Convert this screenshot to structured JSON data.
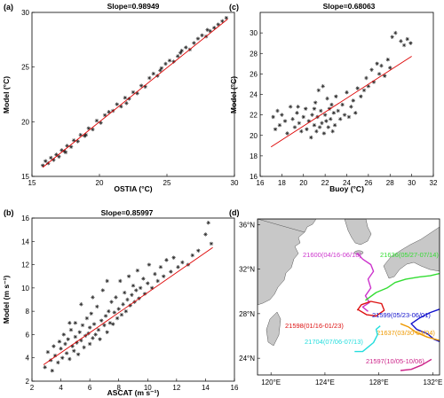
{
  "chart_data": [
    {
      "panel": "(a)",
      "type": "scatter",
      "title": "Slope=0.98949",
      "xlabel": "OSTIA (°C)",
      "ylabel": "Model (°C)",
      "xlim": [
        15,
        30
      ],
      "ylim": [
        15,
        30
      ],
      "xticks": [
        "15",
        "20",
        "25",
        "30"
      ],
      "yticks": [
        "15",
        "20",
        "25",
        "30"
      ],
      "fit": {
        "slope": 0.98949,
        "intercept": 0.2,
        "x_range": [
          15.8,
          29.5
        ]
      },
      "points": [
        [
          15.8,
          16.0
        ],
        [
          16.0,
          16.4
        ],
        [
          16.2,
          16.2
        ],
        [
          16.4,
          16.7
        ],
        [
          16.6,
          16.5
        ],
        [
          16.8,
          17.0
        ],
        [
          17.0,
          16.8
        ],
        [
          17.2,
          17.4
        ],
        [
          17.4,
          17.3
        ],
        [
          17.6,
          17.8
        ],
        [
          17.9,
          17.7
        ],
        [
          18.1,
          18.3
        ],
        [
          18.4,
          18.2
        ],
        [
          18.6,
          18.8
        ],
        [
          18.9,
          18.7
        ],
        [
          19.2,
          19.4
        ],
        [
          19.5,
          19.3
        ],
        [
          19.8,
          20.1
        ],
        [
          20.1,
          19.9
        ],
        [
          20.4,
          20.6
        ],
        [
          20.7,
          20.9
        ],
        [
          21.0,
          21.0
        ],
        [
          21.3,
          21.6
        ],
        [
          21.6,
          21.4
        ],
        [
          21.9,
          22.2
        ],
        [
          22.2,
          22.1
        ],
        [
          22.5,
          22.7
        ],
        [
          22.8,
          22.6
        ],
        [
          23.1,
          23.3
        ],
        [
          23.4,
          23.2
        ],
        [
          23.7,
          24.0
        ],
        [
          24.0,
          24.4
        ],
        [
          24.3,
          24.2
        ],
        [
          24.6,
          24.9
        ],
        [
          24.9,
          25.3
        ],
        [
          25.2,
          25.6
        ],
        [
          25.5,
          25.5
        ],
        [
          25.8,
          26.0
        ],
        [
          26.1,
          26.5
        ],
        [
          26.4,
          26.8
        ],
        [
          26.7,
          26.6
        ],
        [
          27.0,
          27.2
        ],
        [
          27.3,
          27.6
        ],
        [
          27.6,
          27.9
        ],
        [
          27.9,
          27.8
        ],
        [
          28.2,
          28.3
        ],
        [
          28.5,
          28.6
        ],
        [
          28.8,
          28.9
        ],
        [
          29.1,
          29.2
        ],
        [
          29.4,
          29.5
        ],
        [
          17.5,
          17.2
        ],
        [
          19.0,
          18.8
        ],
        [
          22.0,
          21.7
        ],
        [
          24.5,
          24.7
        ],
        [
          26.0,
          26.3
        ],
        [
          28.0,
          28.4
        ]
      ]
    },
    {
      "panel": "(b)",
      "type": "scatter",
      "title": "Slope=0.85997",
      "xlabel": "ASCAT (m s⁻¹)",
      "ylabel": "Model (m s⁻¹)",
      "xlim": [
        2,
        16
      ],
      "ylim": [
        2,
        16
      ],
      "xticks": [
        "2",
        "4",
        "6",
        "8",
        "10",
        "12",
        "14",
        "16"
      ],
      "yticks": [
        "2",
        "4",
        "6",
        "8",
        "10",
        "12",
        "14",
        "16"
      ],
      "fit": {
        "slope": 0.85997,
        "intercept": 1.0,
        "x_range": [
          2.8,
          14.5
        ]
      },
      "points": [
        [
          2.9,
          3.2
        ],
        [
          3.1,
          4.5
        ],
        [
          3.3,
          3.8
        ],
        [
          3.5,
          5.0
        ],
        [
          3.6,
          4.2
        ],
        [
          3.8,
          3.6
        ],
        [
          3.9,
          5.4
        ],
        [
          4.0,
          4.8
        ],
        [
          4.1,
          4.0
        ],
        [
          4.2,
          6.0
        ],
        [
          4.3,
          5.2
        ],
        [
          4.4,
          4.4
        ],
        [
          4.5,
          5.6
        ],
        [
          4.6,
          3.9
        ],
        [
          4.7,
          6.4
        ],
        [
          4.8,
          5.0
        ],
        [
          4.9,
          4.6
        ],
        [
          5.0,
          5.8
        ],
        [
          5.0,
          7.0
        ],
        [
          5.1,
          5.3
        ],
        [
          5.2,
          4.3
        ],
        [
          5.3,
          6.2
        ],
        [
          5.4,
          5.5
        ],
        [
          5.5,
          6.8
        ],
        [
          5.6,
          4.9
        ],
        [
          5.7,
          5.9
        ],
        [
          5.8,
          7.4
        ],
        [
          5.9,
          6.1
        ],
        [
          6.0,
          5.2
        ],
        [
          6.0,
          6.6
        ],
        [
          6.1,
          7.8
        ],
        [
          6.2,
          5.7
        ],
        [
          6.3,
          6.9
        ],
        [
          6.4,
          6.0
        ],
        [
          6.5,
          8.4
        ],
        [
          6.6,
          6.4
        ],
        [
          6.7,
          5.6
        ],
        [
          6.8,
          7.2
        ],
        [
          6.9,
          9.8
        ],
        [
          7.0,
          6.8
        ],
        [
          7.1,
          7.6
        ],
        [
          7.2,
          6.2
        ],
        [
          7.3,
          8.0
        ],
        [
          7.4,
          7.0
        ],
        [
          7.5,
          8.8
        ],
        [
          7.6,
          6.9
        ],
        [
          7.7,
          7.9
        ],
        [
          7.8,
          9.2
        ],
        [
          7.9,
          7.4
        ],
        [
          8.0,
          8.2
        ],
        [
          8.1,
          10.6
        ],
        [
          8.2,
          7.7
        ],
        [
          8.3,
          8.6
        ],
        [
          8.4,
          9.6
        ],
        [
          8.5,
          8.0
        ],
        [
          8.6,
          9.0
        ],
        [
          8.7,
          11.0
        ],
        [
          8.8,
          8.5
        ],
        [
          8.9,
          9.4
        ],
        [
          9.0,
          10.2
        ],
        [
          9.1,
          8.8
        ],
        [
          9.2,
          9.8
        ],
        [
          9.3,
          11.5
        ],
        [
          9.4,
          9.1
        ],
        [
          9.5,
          10.0
        ],
        [
          9.7,
          10.8
        ],
        [
          9.8,
          9.5
        ],
        [
          10.0,
          10.4
        ],
        [
          10.1,
          12.0
        ],
        [
          10.3,
          10.0
        ],
        [
          10.5,
          11.2
        ],
        [
          10.7,
          10.6
        ],
        [
          10.9,
          11.8
        ],
        [
          11.1,
          11.0
        ],
        [
          11.3,
          12.4
        ],
        [
          11.6,
          11.4
        ],
        [
          11.8,
          12.6
        ],
        [
          12.1,
          11.8
        ],
        [
          12.4,
          12.2
        ],
        [
          12.8,
          12.0
        ],
        [
          13.1,
          12.8
        ],
        [
          13.5,
          13.2
        ],
        [
          14.0,
          14.6
        ],
        [
          14.2,
          15.6
        ],
        [
          14.4,
          13.8
        ],
        [
          5.4,
          8.6
        ],
        [
          6.2,
          9.2
        ],
        [
          4.6,
          7.0
        ],
        [
          7.2,
          10.6
        ],
        [
          3.4,
          2.9
        ]
      ]
    },
    {
      "panel": "(c)",
      "type": "scatter",
      "title": "Slope=0.68063",
      "xlabel": "Buoy (°C)",
      "ylabel": "Model (°C)",
      "xlim": [
        16,
        32
      ],
      "ylim": [
        16,
        32
      ],
      "xticks": [
        "16",
        "18",
        "20",
        "22",
        "24",
        "26",
        "28",
        "30",
        "32"
      ],
      "yticks": [
        "16",
        "18",
        "20",
        "22",
        "24",
        "26",
        "28",
        "30"
      ],
      "fit": {
        "slope": 0.68063,
        "intercept": 7.3,
        "x_range": [
          17.0,
          30.0
        ]
      },
      "points": [
        [
          17.2,
          21.8
        ],
        [
          17.4,
          20.6
        ],
        [
          17.6,
          22.4
        ],
        [
          17.8,
          21.0
        ],
        [
          18.0,
          22.0
        ],
        [
          18.3,
          21.4
        ],
        [
          18.5,
          20.2
        ],
        [
          18.8,
          22.8
        ],
        [
          19.0,
          21.6
        ],
        [
          19.2,
          20.8
        ],
        [
          19.4,
          22.2
        ],
        [
          19.6,
          21.2
        ],
        [
          19.8,
          20.4
        ],
        [
          20.0,
          21.8
        ],
        [
          20.2,
          22.6
        ],
        [
          20.3,
          20.6
        ],
        [
          20.5,
          21.4
        ],
        [
          20.7,
          19.8
        ],
        [
          20.8,
          22.0
        ],
        [
          21.0,
          21.0
        ],
        [
          21.1,
          23.2
        ],
        [
          21.2,
          20.4
        ],
        [
          21.3,
          21.8
        ],
        [
          21.4,
          24.4
        ],
        [
          21.5,
          20.8
        ],
        [
          21.6,
          22.4
        ],
        [
          21.7,
          21.2
        ],
        [
          21.8,
          24.8
        ],
        [
          21.9,
          20.2
        ],
        [
          22.0,
          22.0
        ],
        [
          22.1,
          21.4
        ],
        [
          22.2,
          23.6
        ],
        [
          22.3,
          20.8
        ],
        [
          22.4,
          22.6
        ],
        [
          22.5,
          21.6
        ],
        [
          22.6,
          23.0
        ],
        [
          22.7,
          20.4
        ],
        [
          22.8,
          22.2
        ],
        [
          22.9,
          21.0
        ],
        [
          23.0,
          23.8
        ],
        [
          23.2,
          22.4
        ],
        [
          23.4,
          21.6
        ],
        [
          23.6,
          23.0
        ],
        [
          23.8,
          22.0
        ],
        [
          24.0,
          24.2
        ],
        [
          24.2,
          21.8
        ],
        [
          24.4,
          22.8
        ],
        [
          24.6,
          23.4
        ],
        [
          24.8,
          22.2
        ],
        [
          25.0,
          24.6
        ],
        [
          25.3,
          23.8
        ],
        [
          25.6,
          24.4
        ],
        [
          25.8,
          25.6
        ],
        [
          26.0,
          24.8
        ],
        [
          26.3,
          26.4
        ],
        [
          26.5,
          25.2
        ],
        [
          26.8,
          27.0
        ],
        [
          27.0,
          26.0
        ],
        [
          27.2,
          26.8
        ],
        [
          27.5,
          25.8
        ],
        [
          27.8,
          27.4
        ],
        [
          28.0,
          26.6
        ],
        [
          28.2,
          29.6
        ],
        [
          28.5,
          30.0
        ],
        [
          29.0,
          29.2
        ],
        [
          29.3,
          28.8
        ],
        [
          29.6,
          29.4
        ],
        [
          29.9,
          29.0
        ],
        [
          19.5,
          22.8
        ],
        [
          21.0,
          22.6
        ]
      ]
    }
  ],
  "map": {
    "panel": "(d)",
    "lon_range": [
      119,
      132.5
    ],
    "lat_range": [
      22.5,
      36.5
    ],
    "xticks": [
      "120°E",
      "124°E",
      "128°E",
      "132°E"
    ],
    "yticks": [
      "24°N",
      "28°N",
      "32°N",
      "36°N"
    ],
    "tracks": [
      {
        "label": "21600(04/16-06/18)",
        "color": "#cc33cc",
        "path": [
          [
            127.2,
            28.2
          ],
          [
            126.8,
            28.6
          ],
          [
            127.3,
            29.0
          ],
          [
            127.0,
            29.6
          ],
          [
            127.4,
            30.3
          ],
          [
            127.2,
            31.1
          ],
          [
            127.6,
            31.8
          ],
          [
            127.4,
            32.4
          ],
          [
            126.8,
            32.9
          ],
          [
            126.4,
            33.4
          ]
        ]
      },
      {
        "label": "21598(01/16-01/23)",
        "color": "#dd1111",
        "path": [
          [
            126.4,
            28.3
          ],
          [
            126.7,
            28.8
          ],
          [
            127.4,
            29.1
          ],
          [
            128.2,
            28.9
          ],
          [
            128.4,
            28.3
          ],
          [
            127.8,
            27.8
          ],
          [
            127.1,
            27.9
          ],
          [
            126.4,
            28.4
          ]
        ]
      },
      {
        "label": "21636(05/27-07/14)",
        "color": "#33dd33",
        "path": [
          [
            127.0,
            29.2
          ],
          [
            127.8,
            29.9
          ],
          [
            128.6,
            30.3
          ],
          [
            129.2,
            30.8
          ],
          [
            130.0,
            31.1
          ],
          [
            131.0,
            31.3
          ],
          [
            131.8,
            31.4
          ],
          [
            132.5,
            31.6
          ]
        ]
      },
      {
        "label": "21599(05/23-06/01)",
        "color": "#1111cc",
        "path": [
          [
            132.5,
            28.4
          ],
          [
            131.8,
            28.1
          ],
          [
            131.0,
            27.6
          ],
          [
            130.4,
            27.1
          ],
          [
            130.8,
            26.6
          ],
          [
            131.6,
            26.2
          ],
          [
            132.1,
            25.7
          ],
          [
            132.5,
            25.5
          ]
        ]
      },
      {
        "label": "21637(03/30-04/04)",
        "color": "#ee9900",
        "path": [
          [
            132.5,
            25.6
          ],
          [
            131.6,
            25.9
          ],
          [
            130.8,
            26.3
          ],
          [
            130.2,
            26.8
          ],
          [
            129.6,
            27.1
          ]
        ]
      },
      {
        "label": "21704(07/06-07/13)",
        "color": "#22dddd",
        "path": [
          [
            126.2,
            24.6
          ],
          [
            126.8,
            24.6
          ],
          [
            127.2,
            25.0
          ],
          [
            127.6,
            25.4
          ],
          [
            127.9,
            26.1
          ],
          [
            127.8,
            26.6
          ],
          [
            128.1,
            26.9
          ]
        ]
      },
      {
        "label": "21597(10/05-10/06)",
        "color": "#cc2288",
        "path": [
          [
            129.6,
            22.9
          ],
          [
            130.4,
            23.0
          ],
          [
            131.2,
            23.4
          ],
          [
            131.9,
            23.9
          ]
        ]
      }
    ]
  }
}
